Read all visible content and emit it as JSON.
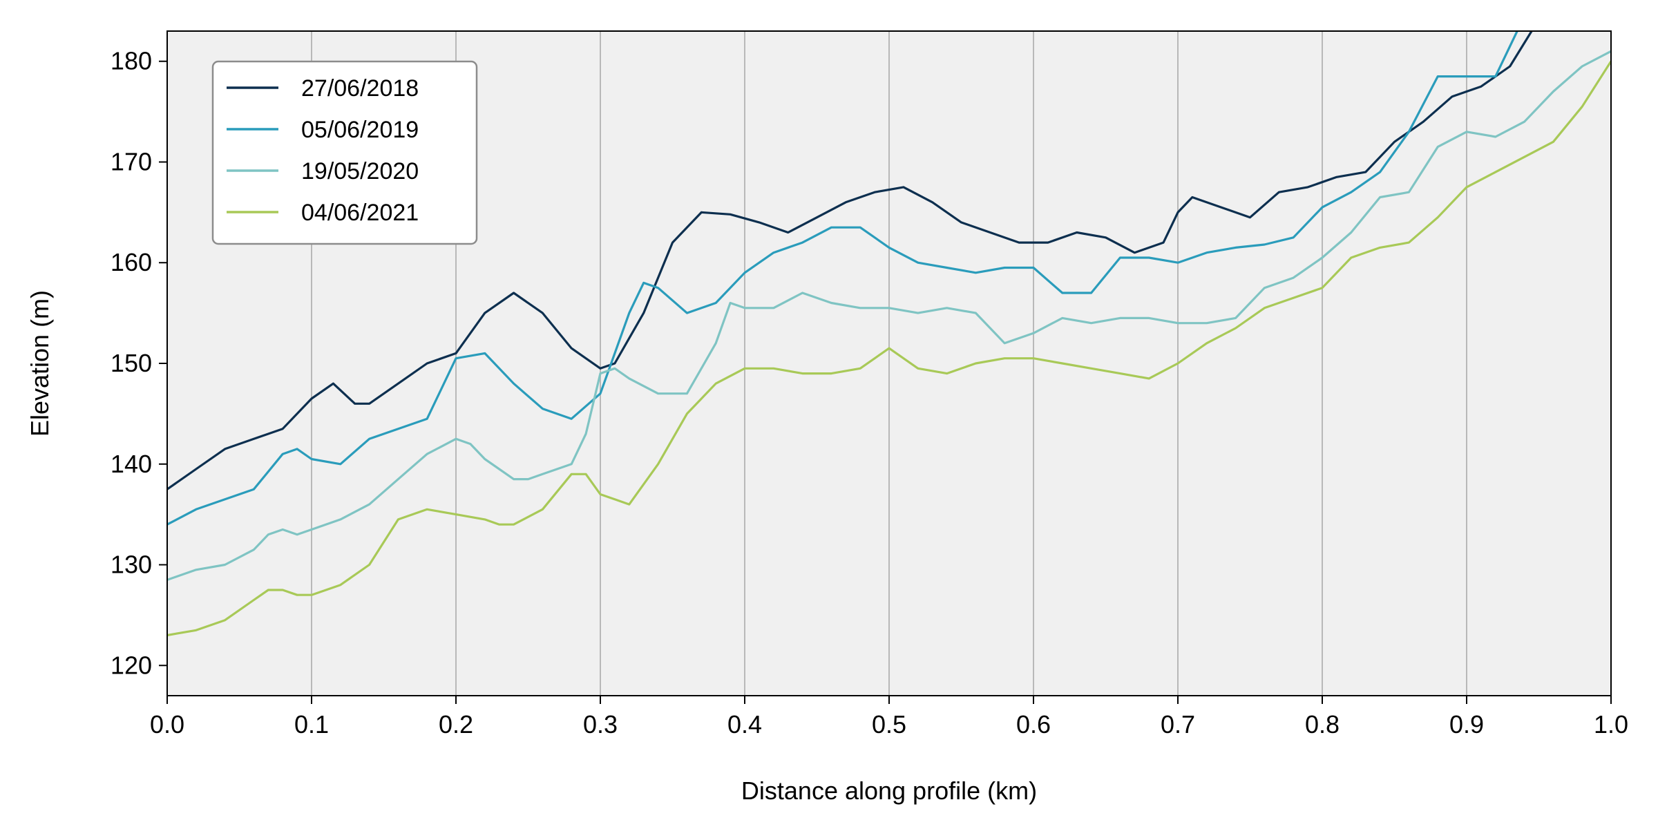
{
  "chart_data": {
    "type": "line",
    "xlabel": "Distance along profile (km)",
    "ylabel": "Elevation (m)",
    "xlim": [
      0.0,
      1.0
    ],
    "ylim": [
      117,
      183
    ],
    "xticks": [
      0.0,
      0.1,
      0.2,
      0.3,
      0.4,
      0.5,
      0.6,
      0.7,
      0.8,
      0.9,
      1.0
    ],
    "xtick_labels": [
      "0.0",
      "0.1",
      "0.2",
      "0.3",
      "0.4",
      "0.5",
      "0.6",
      "0.7",
      "0.8",
      "0.9",
      "1.0"
    ],
    "yticks": [
      120,
      130,
      140,
      150,
      160,
      170,
      180
    ],
    "ytick_labels": [
      "120",
      "130",
      "140",
      "150",
      "160",
      "170",
      "180"
    ],
    "grid": "vertical",
    "background": "#f0f0f0",
    "legend_position": "top-left",
    "series": [
      {
        "name": "27/06/2018",
        "color": "#0d2f4f",
        "x": [
          0.0,
          0.02,
          0.04,
          0.06,
          0.08,
          0.1,
          0.115,
          0.13,
          0.14,
          0.16,
          0.18,
          0.2,
          0.22,
          0.24,
          0.26,
          0.28,
          0.3,
          0.31,
          0.33,
          0.35,
          0.37,
          0.39,
          0.41,
          0.43,
          0.45,
          0.47,
          0.49,
          0.51,
          0.53,
          0.55,
          0.57,
          0.59,
          0.61,
          0.63,
          0.65,
          0.67,
          0.69,
          0.7,
          0.71,
          0.73,
          0.75,
          0.77,
          0.79,
          0.81,
          0.83,
          0.85,
          0.87,
          0.89,
          0.91,
          0.93,
          0.945
        ],
        "values": [
          137.5,
          139.5,
          141.5,
          142.5,
          143.5,
          146.5,
          148.0,
          146.0,
          146.0,
          148.0,
          150.0,
          151.0,
          155.0,
          157.0,
          155.0,
          151.5,
          149.5,
          150.0,
          155.0,
          162.0,
          165.0,
          164.8,
          164.0,
          163.0,
          164.5,
          166.0,
          167.0,
          167.5,
          166.0,
          164.0,
          163.0,
          162.0,
          162.0,
          163.0,
          162.5,
          161.0,
          162.0,
          165.0,
          166.5,
          165.5,
          164.5,
          167.0,
          167.5,
          168.5,
          169.0,
          172.0,
          174.0,
          176.5,
          177.5,
          179.5,
          183.0
        ]
      },
      {
        "name": "05/06/2019",
        "color": "#2a9cbb",
        "x": [
          0.0,
          0.02,
          0.04,
          0.06,
          0.08,
          0.09,
          0.1,
          0.12,
          0.14,
          0.16,
          0.18,
          0.2,
          0.22,
          0.24,
          0.26,
          0.28,
          0.3,
          0.31,
          0.32,
          0.33,
          0.34,
          0.36,
          0.38,
          0.4,
          0.42,
          0.44,
          0.46,
          0.48,
          0.5,
          0.52,
          0.54,
          0.56,
          0.58,
          0.6,
          0.62,
          0.64,
          0.66,
          0.68,
          0.7,
          0.72,
          0.74,
          0.76,
          0.78,
          0.8,
          0.82,
          0.84,
          0.86,
          0.88,
          0.9,
          0.92,
          0.935
        ],
        "values": [
          134.0,
          135.5,
          136.5,
          137.5,
          141.0,
          141.5,
          140.5,
          140.0,
          142.5,
          143.5,
          144.5,
          150.5,
          151.0,
          148.0,
          145.5,
          144.5,
          147.0,
          151.0,
          155.0,
          158.0,
          157.5,
          155.0,
          156.0,
          159.0,
          161.0,
          162.0,
          163.5,
          163.5,
          161.5,
          160.0,
          159.5,
          159.0,
          159.5,
          159.5,
          157.0,
          157.0,
          160.5,
          160.5,
          160.0,
          161.0,
          161.5,
          161.8,
          162.5,
          165.5,
          167.0,
          169.0,
          173.0,
          178.5,
          178.5,
          178.5,
          183.0
        ]
      },
      {
        "name": "19/05/2020",
        "color": "#7fc4c3",
        "x": [
          0.0,
          0.02,
          0.04,
          0.06,
          0.07,
          0.08,
          0.09,
          0.1,
          0.12,
          0.14,
          0.16,
          0.18,
          0.2,
          0.21,
          0.22,
          0.24,
          0.25,
          0.26,
          0.28,
          0.29,
          0.3,
          0.31,
          0.32,
          0.34,
          0.36,
          0.38,
          0.39,
          0.4,
          0.42,
          0.44,
          0.46,
          0.48,
          0.5,
          0.52,
          0.54,
          0.56,
          0.58,
          0.6,
          0.62,
          0.64,
          0.66,
          0.68,
          0.7,
          0.72,
          0.74,
          0.76,
          0.78,
          0.8,
          0.82,
          0.84,
          0.86,
          0.88,
          0.9,
          0.92,
          0.94,
          0.96,
          0.98,
          1.0
        ],
        "values": [
          128.5,
          129.5,
          130.0,
          131.5,
          133.0,
          133.5,
          133.0,
          133.5,
          134.5,
          136.0,
          138.5,
          141.0,
          142.5,
          142.0,
          140.5,
          138.5,
          138.5,
          139.0,
          140.0,
          143.0,
          149.0,
          149.5,
          148.5,
          147.0,
          147.0,
          152.0,
          156.0,
          155.5,
          155.5,
          157.0,
          156.0,
          155.5,
          155.5,
          155.0,
          155.5,
          155.0,
          152.0,
          153.0,
          154.5,
          154.0,
          154.5,
          154.5,
          154.0,
          154.0,
          154.5,
          157.5,
          158.5,
          160.5,
          163.0,
          166.5,
          167.0,
          171.5,
          173.0,
          172.5,
          174.0,
          177.0,
          179.5,
          181.0
        ]
      },
      {
        "name": "04/06/2021",
        "color": "#a8c957",
        "x": [
          0.0,
          0.02,
          0.04,
          0.06,
          0.07,
          0.08,
          0.09,
          0.1,
          0.12,
          0.14,
          0.16,
          0.18,
          0.2,
          0.22,
          0.23,
          0.24,
          0.26,
          0.28,
          0.29,
          0.3,
          0.32,
          0.34,
          0.36,
          0.38,
          0.4,
          0.42,
          0.44,
          0.46,
          0.48,
          0.5,
          0.52,
          0.54,
          0.56,
          0.58,
          0.6,
          0.62,
          0.64,
          0.66,
          0.68,
          0.7,
          0.72,
          0.74,
          0.76,
          0.78,
          0.8,
          0.82,
          0.84,
          0.86,
          0.88,
          0.9,
          0.92,
          0.94,
          0.96,
          0.98,
          1.0
        ],
        "values": [
          123.0,
          123.5,
          124.5,
          126.5,
          127.5,
          127.5,
          127.0,
          127.0,
          128.0,
          130.0,
          134.5,
          135.5,
          135.0,
          134.5,
          134.0,
          134.0,
          135.5,
          139.0,
          139.0,
          137.0,
          136.0,
          140.0,
          145.0,
          148.0,
          149.5,
          149.5,
          149.0,
          149.0,
          149.5,
          151.5,
          149.5,
          149.0,
          150.0,
          150.5,
          150.5,
          150.0,
          149.5,
          149.0,
          148.5,
          150.0,
          152.0,
          153.5,
          155.5,
          156.5,
          157.5,
          160.5,
          161.5,
          162.0,
          164.5,
          167.5,
          169.0,
          170.5,
          172.0,
          175.5,
          180.0
        ]
      }
    ]
  }
}
